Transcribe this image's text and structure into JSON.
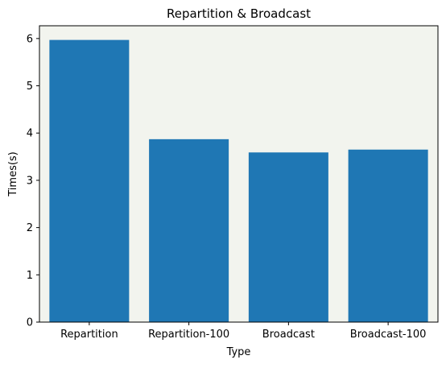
{
  "chart_data": {
    "type": "bar",
    "title": "Repartition & Broadcast",
    "xlabel": "Type",
    "ylabel": "Times(s)",
    "categories": [
      "Repartition",
      "Repartition-100",
      "Broadcast",
      "Broadcast-100"
    ],
    "values": [
      5.97,
      3.87,
      3.59,
      3.65
    ],
    "ylim": [
      0,
      6.27
    ],
    "yticks": [
      0,
      1,
      2,
      3,
      4,
      5,
      6
    ],
    "grid": false,
    "colors": {
      "bar": "#1f77b4",
      "plot_background": "#f2f4ee",
      "axis": "#000000"
    }
  }
}
